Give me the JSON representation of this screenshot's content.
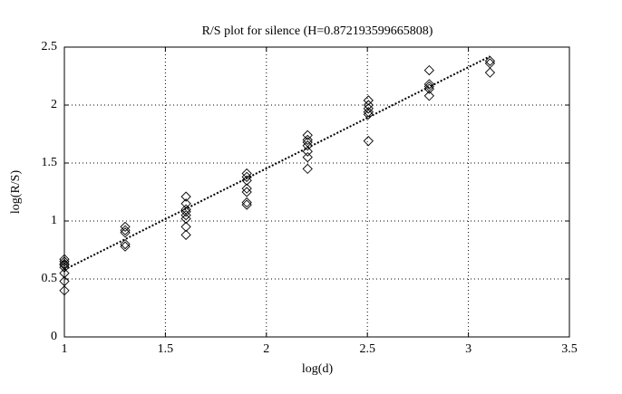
{
  "chart_data": {
    "type": "scatter",
    "title": "R/S plot for silence (H=0.872193599665808)",
    "x_label": "log(d)",
    "y_label": "log(R/S)",
    "xlim": [
      1,
      3.5
    ],
    "xticks": [
      1,
      1.5,
      2,
      2.5,
      3,
      3.5
    ],
    "ylim": [
      0,
      2.5
    ],
    "yticks": [
      0,
      0.5,
      1,
      1.5,
      2,
      2.5
    ],
    "grid": true,
    "series": [
      {
        "color": "#000000",
        "marker": "diamond",
        "x": [
          1,
          1,
          1,
          1,
          1,
          1,
          1,
          1,
          1.301,
          1.301,
          1.301,
          1.301,
          1.301,
          1.602,
          1.602,
          1.602,
          1.602,
          1.602,
          1.602,
          1.602,
          1.602,
          1.903,
          1.903,
          1.903,
          1.903,
          1.903,
          1.903,
          1.903,
          2.204,
          2.204,
          2.204,
          2.204,
          2.204,
          2.204,
          2.204,
          2.505,
          2.505,
          2.505,
          2.505,
          2.505,
          2.505,
          2.806,
          2.806,
          2.806,
          2.806,
          2.806,
          3.107,
          3.107,
          3.107
        ],
        "values": [
          0.67,
          0.65,
          0.63,
          0.62,
          0.6,
          0.55,
          0.48,
          0.4,
          0.95,
          0.92,
          0.9,
          0.8,
          0.78,
          1.21,
          1.15,
          1.1,
          1.08,
          1.05,
          1.02,
          0.95,
          0.88,
          1.41,
          1.38,
          1.35,
          1.28,
          1.25,
          1.16,
          1.14,
          1.74,
          1.7,
          1.68,
          1.65,
          1.6,
          1.55,
          1.45,
          2.04,
          2.0,
          1.97,
          1.94,
          1.92,
          1.69,
          2.3,
          2.18,
          2.16,
          2.14,
          2.08,
          2.38,
          2.36,
          2.28
        ]
      },
      {
        "color": "#000000",
        "line": "dotted",
        "x": [
          1,
          3.107
        ],
        "values": [
          0.58,
          2.42
        ]
      }
    ]
  }
}
